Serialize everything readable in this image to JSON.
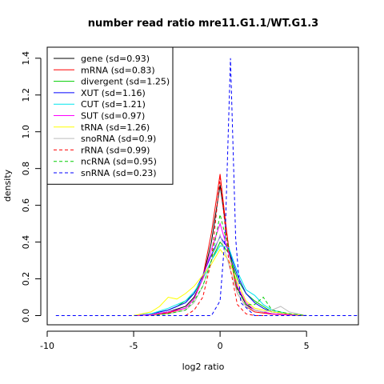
{
  "chart_data": {
    "type": "line",
    "title": "number read ratio mre11.G1.1/WT.G1.3",
    "xlabel": "log2 ratio",
    "ylabel": "density",
    "xlim": [
      -10,
      8
    ],
    "ylim": [
      -0.05,
      1.46
    ],
    "x_ticks": [
      -10,
      -5,
      0,
      5
    ],
    "y_ticks": [
      0.0,
      0.2,
      0.4,
      0.6,
      0.8,
      1.0,
      1.2,
      1.4
    ],
    "x_tick_labels": [
      "-10",
      "-5",
      "0",
      "5"
    ],
    "y_tick_labels": [
      "0.0",
      "0.2",
      "0.4",
      "0.6",
      "0.8",
      "1.0",
      "1.2",
      "1.4"
    ],
    "legend_position": "top-left",
    "series": [
      {
        "name": "gene (sd=0.93)",
        "color": "#000000",
        "dash": "solid",
        "x": [
          -5,
          -4,
          -3,
          -2,
          -1.5,
          -1,
          -0.5,
          0,
          0.5,
          1,
          1.5,
          2,
          3,
          4,
          5
        ],
        "y": [
          0,
          0.005,
          0.02,
          0.05,
          0.1,
          0.2,
          0.4,
          0.71,
          0.37,
          0.15,
          0.06,
          0.03,
          0.01,
          0.005,
          0
        ]
      },
      {
        "name": "mRNA (sd=0.83)",
        "color": "#ff0000",
        "dash": "solid",
        "x": [
          -5,
          -4,
          -3,
          -2,
          -1.5,
          -1,
          -0.5,
          0,
          0.5,
          1,
          1.5,
          2,
          3,
          4,
          5
        ],
        "y": [
          0,
          0.004,
          0.015,
          0.04,
          0.09,
          0.21,
          0.45,
          0.77,
          0.36,
          0.12,
          0.05,
          0.02,
          0.008,
          0.003,
          0
        ]
      },
      {
        "name": "divergent (sd=1.25)",
        "color": "#00cd00",
        "dash": "solid",
        "x": [
          -5,
          -4,
          -3,
          -2.5,
          -2,
          -1.5,
          -1,
          -0.5,
          0,
          0.5,
          1,
          1.5,
          2,
          2.5,
          3,
          4,
          5
        ],
        "y": [
          0,
          0.01,
          0.03,
          0.05,
          0.08,
          0.12,
          0.2,
          0.3,
          0.4,
          0.34,
          0.2,
          0.12,
          0.08,
          0.05,
          0.02,
          0.01,
          0
        ]
      },
      {
        "name": "XUT (sd=1.16)",
        "color": "#0000ff",
        "dash": "solid",
        "x": [
          -5,
          -4,
          -3,
          -2.5,
          -2,
          -1.5,
          -1,
          -0.5,
          0,
          0.5,
          1,
          1.5,
          2,
          2.5,
          3,
          4,
          5
        ],
        "y": [
          0,
          0.01,
          0.03,
          0.05,
          0.07,
          0.12,
          0.22,
          0.33,
          0.43,
          0.36,
          0.22,
          0.12,
          0.07,
          0.04,
          0.02,
          0.01,
          0
        ]
      },
      {
        "name": "CUT (sd=1.21)",
        "color": "#00e5ee",
        "dash": "solid",
        "x": [
          -5,
          -4,
          -3,
          -2.5,
          -2,
          -1.5,
          -1,
          -0.5,
          0,
          0.5,
          1,
          1.5,
          2,
          2.5,
          3,
          4,
          5
        ],
        "y": [
          0,
          0.01,
          0.04,
          0.06,
          0.08,
          0.13,
          0.2,
          0.3,
          0.38,
          0.37,
          0.24,
          0.14,
          0.11,
          0.06,
          0.03,
          0.01,
          0
        ]
      },
      {
        "name": "SUT (sd=0.97)",
        "color": "#ff00ff",
        "dash": "solid",
        "x": [
          -5,
          -4,
          -3,
          -2,
          -1.5,
          -1,
          -0.5,
          0,
          0.5,
          1,
          1.5,
          2,
          3,
          4,
          5
        ],
        "y": [
          0,
          0.005,
          0.02,
          0.04,
          0.09,
          0.2,
          0.36,
          0.5,
          0.34,
          0.16,
          0.07,
          0.03,
          0.01,
          0.005,
          0
        ]
      },
      {
        "name": "tRNA (sd=1.26)",
        "color": "#ffff00",
        "dash": "solid",
        "x": [
          -5,
          -4,
          -3.5,
          -3,
          -2.5,
          -2,
          -1.5,
          -1,
          -0.5,
          0,
          0.5,
          1,
          1.5,
          2,
          3,
          4,
          5
        ],
        "y": [
          0,
          0.02,
          0.05,
          0.1,
          0.09,
          0.12,
          0.16,
          0.22,
          0.28,
          0.36,
          0.3,
          0.18,
          0.08,
          0.04,
          0.02,
          0.01,
          0
        ]
      },
      {
        "name": "snoRNA (sd=0.9)",
        "color": "#bebebe",
        "dash": "solid",
        "x": [
          -4,
          -3,
          -2,
          -1.5,
          -1,
          -0.5,
          0,
          0.5,
          1,
          1.5,
          2,
          2.5,
          3,
          3.5,
          4,
          5
        ],
        "y": [
          0,
          0.01,
          0.03,
          0.07,
          0.16,
          0.3,
          0.44,
          0.28,
          0.12,
          0.05,
          0.03,
          0.02,
          0.03,
          0.05,
          0.02,
          0
        ]
      },
      {
        "name": "rRNA (sd=0.99)",
        "color": "#ff0000",
        "dash": "dashed",
        "x": [
          -2,
          -1.5,
          -1,
          -0.5,
          0,
          0.5,
          1,
          1.5,
          2,
          2.5
        ],
        "y": [
          0,
          0.03,
          0.1,
          0.3,
          0.75,
          0.3,
          0.06,
          0.01,
          0,
          0
        ]
      },
      {
        "name": "ncRNA (sd=0.95)",
        "color": "#00cd00",
        "dash": "dashed",
        "x": [
          -4,
          -3,
          -2,
          -1.5,
          -1,
          -0.5,
          0,
          0.5,
          1,
          1.5,
          2,
          2.5,
          3,
          4,
          5
        ],
        "y": [
          0,
          0.01,
          0.03,
          0.08,
          0.16,
          0.3,
          0.55,
          0.36,
          0.14,
          0.06,
          0.06,
          0.1,
          0.03,
          0.01,
          0
        ]
      },
      {
        "name": "snRNA (sd=0.23)",
        "color": "#0000ff",
        "dash": "dashed",
        "x": [
          -9.5,
          -6,
          -3,
          -1,
          -0.5,
          0,
          0.3,
          0.6,
          0.9,
          1.2,
          2,
          4,
          6,
          8
        ],
        "y": [
          0,
          0,
          0,
          0,
          0,
          0.08,
          0.45,
          1.4,
          0.42,
          0.07,
          0,
          0,
          0,
          0
        ]
      }
    ]
  }
}
